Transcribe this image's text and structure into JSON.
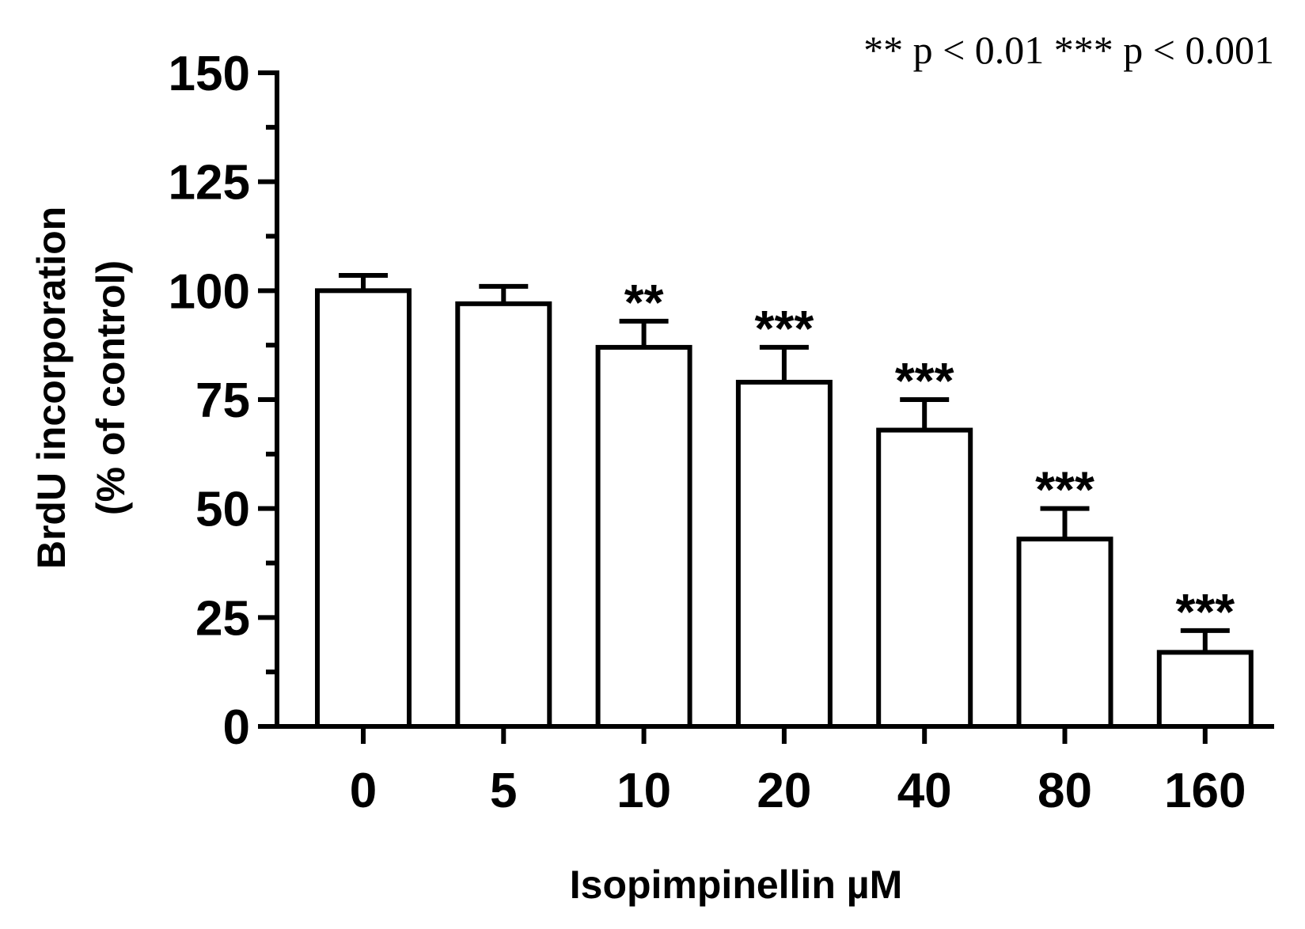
{
  "chart_data": {
    "type": "bar",
    "categories": [
      "0",
      "5",
      "10",
      "20",
      "40",
      "80",
      "160"
    ],
    "values": [
      100,
      97,
      87,
      79,
      68,
      43,
      17
    ],
    "errors": [
      3.5,
      4.0,
      6.0,
      8.0,
      7.0,
      7.0,
      5.0
    ],
    "significance": [
      "",
      "",
      "**",
      "***",
      "***",
      "***",
      "***"
    ],
    "xlabel": "Isopimpinellin µM",
    "ylabel_line1": "BrdU incorporation",
    "ylabel_line2": "(% of control)",
    "ylim": [
      0,
      150
    ],
    "yticks": [
      "0",
      "25",
      "50",
      "75",
      "100",
      "125",
      "150"
    ],
    "annotation": "** p < 0.01 *** p < 0.001",
    "bar_color": "#ffffff",
    "edge_color": "#000000",
    "grid": false,
    "legend": "none"
  }
}
